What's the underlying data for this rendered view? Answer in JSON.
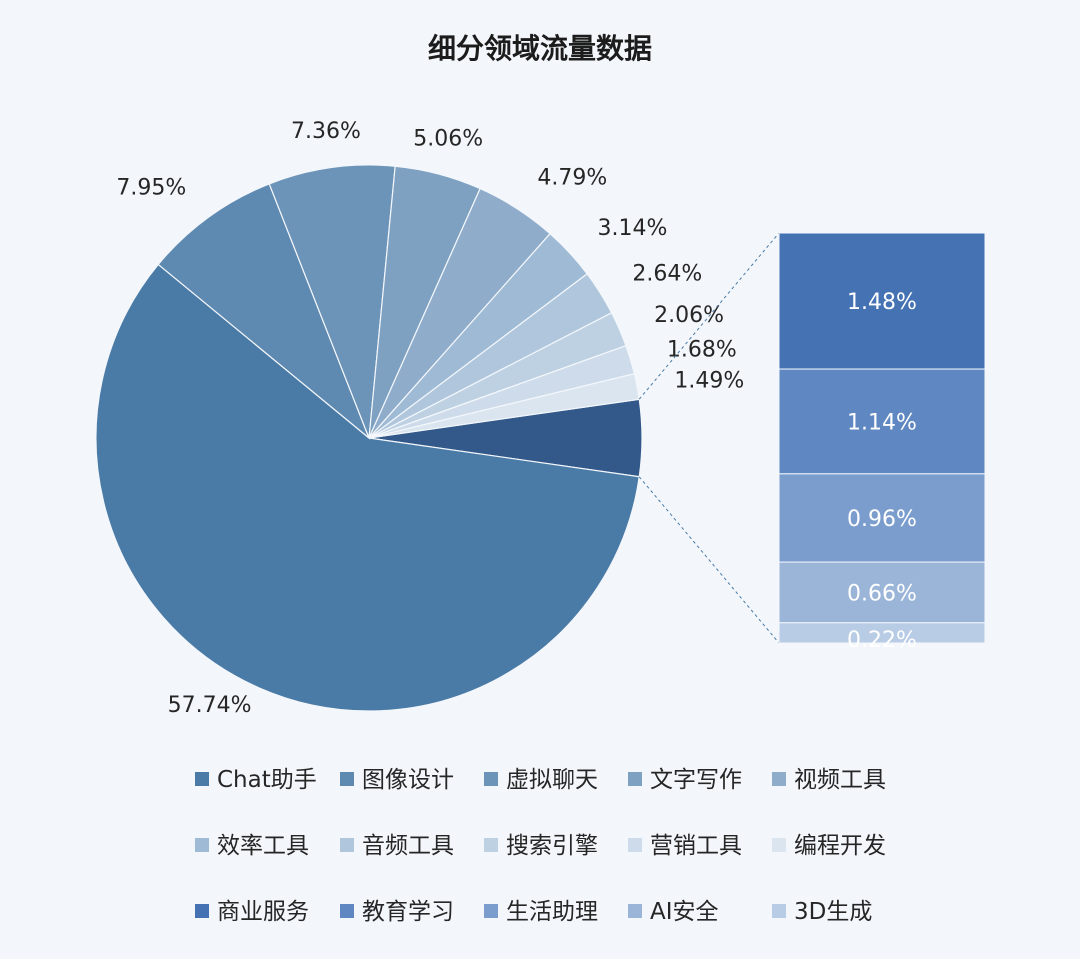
{
  "chart_data": {
    "type": "pie",
    "subtype": "pie-of-pie-bar",
    "title": "细分领域流量数据",
    "slices": [
      {
        "name": "Chat助手",
        "value": 57.74,
        "label": "57.74%",
        "color": "#4a7aa6"
      },
      {
        "name": "图像设计",
        "value": 7.95,
        "label": "7.95%",
        "color": "#5e89b0"
      },
      {
        "name": "虚拟聊天",
        "value": 7.36,
        "label": "7.36%",
        "color": "#6c93b8"
      },
      {
        "name": "文字写作",
        "value": 5.06,
        "label": "5.06%",
        "color": "#7ea1c2"
      },
      {
        "name": "视频工具",
        "value": 4.79,
        "label": "4.79%",
        "color": "#8fadcb"
      },
      {
        "name": "效率工具",
        "value": 3.14,
        "label": "3.14%",
        "color": "#9fbad4"
      },
      {
        "name": "音频工具",
        "value": 2.64,
        "label": "2.64%",
        "color": "#afc6dc"
      },
      {
        "name": "搜索引擎",
        "value": 2.06,
        "label": "2.06%",
        "color": "#bed1e3"
      },
      {
        "name": "营销工具",
        "value": 1.68,
        "label": "1.68%",
        "color": "#cddbea"
      },
      {
        "name": "编程开发",
        "value": 1.49,
        "label": "1.49%",
        "color": "#dae5ef"
      }
    ],
    "other_slice": {
      "value": 4.46,
      "color": "#33598a"
    },
    "bar_breakdown": [
      {
        "name": "商业服务",
        "value": 1.48,
        "label": "1.48%",
        "color": "#4472b3"
      },
      {
        "name": "教育学习",
        "value": 1.14,
        "label": "1.14%",
        "color": "#5f87c1"
      },
      {
        "name": "生活助理",
        "value": 0.96,
        "label": "0.96%",
        "color": "#7b9dcd"
      },
      {
        "name": "AI安全",
        "value": 0.66,
        "label": "0.66%",
        "color": "#9bb5d9"
      },
      {
        "name": "3D生成",
        "value": 0.22,
        "label": "0.22%",
        "color": "#b9cce5"
      }
    ],
    "legend_position": "bottom"
  }
}
